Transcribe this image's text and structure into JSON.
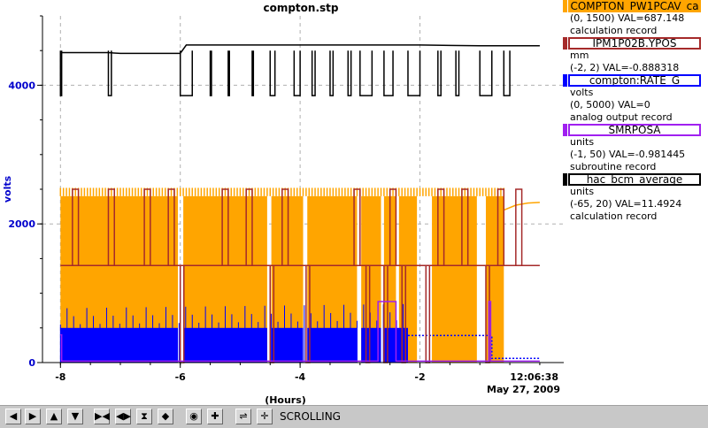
{
  "plot_title": "compton.stp",
  "y_axis_label": "volts",
  "x_axis_label": "(Hours)",
  "timestamp": {
    "time": "12:06:38",
    "date": "May 27, 2009"
  },
  "colors": {
    "orange": "#ffa500",
    "darkred": "#a52a2a",
    "blue": "#0000ff",
    "purple": "#a020f0",
    "black": "#000000",
    "axis_label": "#0000cc"
  },
  "legend": [
    {
      "name": "COMPTON_PW1PCAV_ca",
      "color": "#ffa500",
      "lines": [
        "(0, 1500) VAL=687.148",
        "calculation record"
      ]
    },
    {
      "name": "IPM1P02B.YPOS",
      "color": "#a52a2a",
      "lines": [
        "mm",
        "(-2, 2) VAL=-0.888318"
      ]
    },
    {
      "name": "compton:RATE_G",
      "color": "#0000ff",
      "lines": [
        "volts",
        "(0, 5000) VAL=0",
        "analog output record"
      ]
    },
    {
      "name": "SMRPOSA",
      "color": "#a020f0",
      "lines": [
        "units",
        "(-1, 50) VAL=-0.981445",
        "subroutine record"
      ]
    },
    {
      "name": "hac_bcm_average",
      "color": "#000000",
      "lines": [
        "units",
        "(-65, 20) VAL=11.4924",
        "calculation record"
      ]
    }
  ],
  "toolbar": {
    "buttons": [
      {
        "name": "pan-left-icon",
        "glyph": "◀"
      },
      {
        "name": "pan-right-icon",
        "glyph": "▶"
      },
      {
        "name": "pan-up-icon",
        "glyph": "▲"
      },
      {
        "name": "pan-down-icon",
        "glyph": "▼"
      },
      {
        "name": "zoom-in-horizontal-icon",
        "glyph": "▶◀"
      },
      {
        "name": "zoom-out-horizontal-icon",
        "glyph": "◀▶"
      },
      {
        "name": "zoom-in-vertical-icon",
        "glyph": "⧗"
      },
      {
        "name": "zoom-out-vertical-icon",
        "glyph": "◆"
      },
      {
        "name": "autoscale-icon",
        "glyph": "◉"
      },
      {
        "name": "zoom-in-icon",
        "glyph": "✚"
      },
      {
        "name": "scroll-mode-icon",
        "glyph": "⇌"
      },
      {
        "name": "stop-icon",
        "glyph": "✛"
      }
    ],
    "status": "SCROLLING"
  },
  "chart_data": {
    "type": "line",
    "xlabel": "(Hours)",
    "ylabel": "volts",
    "xlim": [
      -8.3,
      0.4
    ],
    "ylim": [
      0,
      5000
    ],
    "x_ticks": [
      -8,
      -6,
      -4,
      -2
    ],
    "y_ticks": [
      0,
      2000,
      4000
    ],
    "grid": true,
    "legend_position": "right",
    "series": [
      {
        "name": "hac_bcm_average",
        "color": "#000000",
        "base_y": 4470,
        "points": [
          [
            -8.0,
            4470
          ],
          [
            -7.5,
            4470
          ],
          [
            -7.2,
            4470
          ],
          [
            -7.0,
            4460
          ],
          [
            -6.5,
            4460
          ],
          [
            -6.0,
            4460
          ],
          [
            -5.9,
            4580
          ],
          [
            -5.0,
            4580
          ],
          [
            -4.0,
            4580
          ],
          [
            -3.0,
            4580
          ],
          [
            -2.0,
            4580
          ],
          [
            -1.0,
            4570
          ],
          [
            -0.2,
            4570
          ],
          [
            0.0,
            4570
          ]
        ],
        "dips": [
          [
            -8.0,
            -7.98
          ],
          [
            -7.2,
            -7.15
          ],
          [
            -6.0,
            -5.8
          ],
          [
            -5.5,
            -5.48
          ],
          [
            -5.2,
            -5.18
          ],
          [
            -4.8,
            -4.78
          ],
          [
            -4.5,
            -4.42
          ],
          [
            -4.1,
            -4.0
          ],
          [
            -3.8,
            -3.75
          ],
          [
            -3.5,
            -3.45
          ],
          [
            -3.2,
            -3.15
          ],
          [
            -3.0,
            -2.8
          ],
          [
            -2.6,
            -2.45
          ],
          [
            -2.2,
            -2.0
          ],
          [
            -1.7,
            -1.65
          ],
          [
            -1.4,
            -1.35
          ],
          [
            -1.0,
            -0.8
          ],
          [
            -0.6,
            -0.5
          ]
        ],
        "dip_y": 3850
      },
      {
        "name": "COMPTON_PW1PCAV_ca",
        "color": "#ffa500",
        "band": [
          0,
          2400
        ],
        "band_x": [
          -8.0,
          0.0
        ],
        "gaps": [
          [
            -6.04,
            -5.95
          ],
          [
            -4.55,
            -4.48
          ],
          [
            -3.95,
            -3.88
          ],
          [
            -3.05,
            -2.98
          ],
          [
            -2.65,
            -2.6
          ],
          [
            -2.4,
            -2.35
          ],
          [
            -2.05,
            -1.8
          ],
          [
            -1.05,
            -0.9
          ],
          [
            -0.6,
            -0.55
          ]
        ],
        "recovery_points": [
          [
            -0.6,
            2200
          ],
          [
            -0.4,
            2270
          ],
          [
            -0.2,
            2300
          ],
          [
            0.0,
            2310
          ]
        ]
      },
      {
        "name": "IPM1P02B.YPOS",
        "color": "#a52a2a",
        "base_y": 1400,
        "high_y": 2500,
        "low_y": 0,
        "points": [
          [
            -8.0,
            1400
          ],
          [
            -2.0,
            1400
          ],
          [
            -1.0,
            1400
          ],
          [
            0.0,
            1400
          ]
        ],
        "spikes_high": [
          -7.8,
          -7.2,
          -6.6,
          -6.2,
          -5.3,
          -4.9,
          -4.3,
          -3.1,
          -2.5,
          -1.7,
          -1.3,
          -0.7,
          -0.4
        ],
        "drops_low": [
          -6.0,
          -4.5,
          -3.9,
          -2.9,
          -2.6,
          -2.3,
          -1.9,
          -0.9
        ]
      },
      {
        "name": "compton:RATE_G",
        "color": "#0000ff",
        "band": [
          0,
          500
        ],
        "band_x": [
          -8.0,
          -2.2
        ],
        "gaps": [
          [
            -6.04,
            -5.95
          ],
          [
            -4.55,
            -4.48
          ],
          [
            -3.95,
            -3.88
          ],
          [
            -3.05,
            -2.98
          ],
          [
            -2.65,
            -2.6
          ]
        ],
        "tail_points": [
          [
            -2.2,
            390
          ],
          [
            -0.8,
            390
          ],
          [
            -0.8,
            60
          ],
          [
            0.0,
            60
          ]
        ]
      },
      {
        "name": "SMRPOSA",
        "color": "#a020f0",
        "points": [
          [
            -8.0,
            400
          ],
          [
            -7.98,
            400
          ],
          [
            -7.98,
            20
          ],
          [
            -2.7,
            20
          ],
          [
            -2.7,
            880
          ],
          [
            -2.4,
            880
          ],
          [
            -2.4,
            20
          ],
          [
            -0.85,
            20
          ],
          [
            -0.85,
            880
          ],
          [
            -0.82,
            880
          ],
          [
            -0.82,
            20
          ],
          [
            0.0,
            20
          ]
        ]
      }
    ]
  }
}
